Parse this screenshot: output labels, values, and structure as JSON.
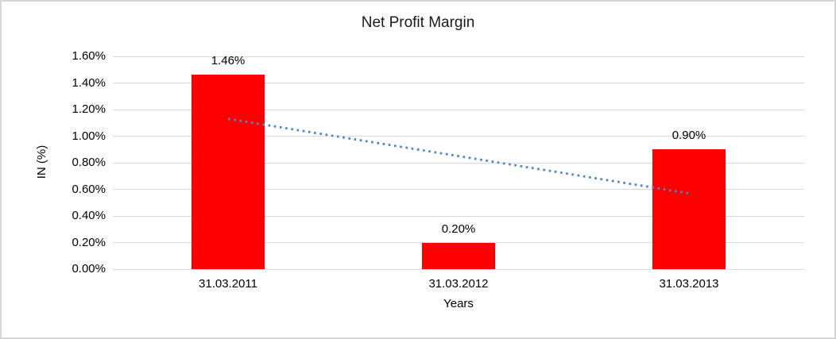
{
  "frame": {
    "background_color": "#ffffff",
    "border_color": "#d6d6d6"
  },
  "chart_data": {
    "type": "bar",
    "title": "Net Profit Margin",
    "xlabel": "Years",
    "ylabel": "IN (%)",
    "categories": [
      "31.03.2011",
      "31.03.2012",
      "31.03.2013"
    ],
    "values": [
      1.46,
      0.2,
      0.9
    ],
    "data_labels": [
      "1.46%",
      "0.20%",
      "0.90%"
    ],
    "ylim": [
      0,
      1.6
    ],
    "ytick_step": 0.2,
    "yticks": [
      "0.00%",
      "0.20%",
      "0.40%",
      "0.60%",
      "0.80%",
      "1.00%",
      "1.20%",
      "1.40%",
      "1.60%"
    ],
    "grid": true,
    "legend_position": "none",
    "bar_color": "#ff0000",
    "gridline_color": "#d9d9d9",
    "text_color": "#000000",
    "trendline": {
      "type": "linear",
      "style": "dotted",
      "color": "#4f86c6",
      "start_value": 1.13,
      "end_value": 0.57
    }
  }
}
